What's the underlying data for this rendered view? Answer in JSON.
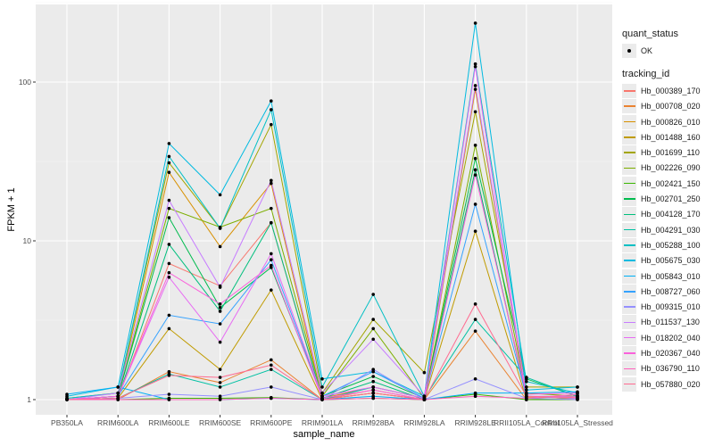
{
  "chart_data": {
    "type": "line",
    "xlabel": "sample_name",
    "ylabel": "FPKM + 1",
    "yscale": "log10",
    "ylim": [
      0.8,
      310
    ],
    "yticks": [
      1,
      10,
      100
    ],
    "grid": true,
    "legend_position": "right",
    "categories": [
      "PB350LA",
      "RRIM600LA",
      "RRIM600LE",
      "RRIM600SE",
      "RRIM600PE",
      "RRIM901LA",
      "RRIM928BA",
      "RRIM928LA",
      "RRIM928LE",
      "RRII105LA_Control",
      "RRII105LA_Stressed"
    ],
    "point_legend": {
      "title": "quant_status",
      "entries": [
        "OK"
      ]
    },
    "color_legend_title": "tracking_id",
    "series": [
      {
        "name": "Hb_000389_170",
        "color": "#F8766D",
        "values": [
          1.0,
          1.02,
          7.2,
          5.2,
          13,
          1.0,
          1.15,
          1.0,
          28,
          1.02,
          1.05
        ]
      },
      {
        "name": "Hb_000708_020",
        "color": "#EA8331",
        "values": [
          1.0,
          1.0,
          1.5,
          1.28,
          1.78,
          1.0,
          1.1,
          1.0,
          2.7,
          1.0,
          1.02
        ]
      },
      {
        "name": "Hb_000826_010",
        "color": "#D89000",
        "values": [
          1.0,
          1.05,
          27,
          9.2,
          23,
          1.02,
          1.2,
          1.02,
          90,
          1.03,
          1.05
        ]
      },
      {
        "name": "Hb_001488_160",
        "color": "#C09B00",
        "values": [
          1.0,
          1.02,
          2.8,
          1.55,
          4.9,
          1.0,
          1.1,
          1.0,
          11.5,
          1.0,
          1.02
        ]
      },
      {
        "name": "Hb_001699_110",
        "color": "#A3A500",
        "values": [
          1.02,
          1.1,
          31,
          12,
          54,
          1.1,
          3.2,
          1.48,
          65,
          1.2,
          1.2
        ]
      },
      {
        "name": "Hb_002226_090",
        "color": "#7CAE00",
        "values": [
          1.0,
          1.05,
          16,
          12.2,
          16,
          1.05,
          2.8,
          1.02,
          40,
          1.1,
          1.05
        ]
      },
      {
        "name": "Hb_002421_150",
        "color": "#39B600",
        "values": [
          1.0,
          1.0,
          1.02,
          1.02,
          1.03,
          1.0,
          1.02,
          1.0,
          1.08,
          1.0,
          1.0
        ]
      },
      {
        "name": "Hb_002701_250",
        "color": "#00BB4E",
        "values": [
          1.0,
          1.05,
          14,
          3.8,
          6.8,
          1.05,
          1.4,
          1.02,
          33,
          1.35,
          1.05
        ]
      },
      {
        "name": "Hb_004128_170",
        "color": "#00BF7D",
        "values": [
          1.0,
          1.02,
          9.5,
          3.6,
          13,
          1.02,
          1.3,
          1.0,
          28,
          1.05,
          1.02
        ]
      },
      {
        "name": "Hb_004291_030",
        "color": "#00C1A3",
        "values": [
          1.0,
          1.02,
          1.45,
          1.2,
          1.55,
          1.0,
          1.2,
          1.02,
          3.2,
          1.38,
          1.05
        ]
      },
      {
        "name": "Hb_005288_100",
        "color": "#00BFC4",
        "values": [
          1.02,
          1.1,
          34,
          12,
          67,
          1.2,
          4.6,
          1.05,
          130,
          1.3,
          1.1
        ]
      },
      {
        "name": "Hb_005675_030",
        "color": "#00BAE0",
        "values": [
          1.05,
          1.2,
          41,
          19.5,
          76,
          1.35,
          1.5,
          1.05,
          235,
          1.15,
          1.2
        ]
      },
      {
        "name": "Hb_005843_010",
        "color": "#00B0F6",
        "values": [
          1.08,
          1.2,
          1.0,
          1.0,
          1.02,
          1.0,
          1.05,
          1.0,
          1.1,
          1.1,
          1.12
        ]
      },
      {
        "name": "Hb_008727_060",
        "color": "#35A2FF",
        "values": [
          1.0,
          1.05,
          3.4,
          3.0,
          7.6,
          1.05,
          1.5,
          1.02,
          17,
          1.05,
          1.02
        ]
      },
      {
        "name": "Hb_009315_010",
        "color": "#9590FF",
        "values": [
          1.0,
          1.02,
          1.08,
          1.05,
          1.2,
          1.0,
          1.55,
          1.0,
          1.35,
          1.02,
          1.0
        ]
      },
      {
        "name": "Hb_011537_130",
        "color": "#C77CFF",
        "values": [
          1.0,
          1.1,
          18,
          5.1,
          24,
          1.1,
          2.4,
          1.05,
          95,
          1.05,
          1.05
        ]
      },
      {
        "name": "Hb_018202_040",
        "color": "#E76BF3",
        "values": [
          1.0,
          1.05,
          5.9,
          2.3,
          8.3,
          1.05,
          1.2,
          1.02,
          125,
          1.05,
          1.02
        ]
      },
      {
        "name": "Hb_020367_040",
        "color": "#FA62DB",
        "values": [
          1.0,
          1.05,
          6.3,
          4.0,
          7.0,
          1.02,
          1.15,
          1.0,
          26,
          1.08,
          1.1
        ]
      },
      {
        "name": "Hb_036790_110",
        "color": "#FF62BC",
        "values": [
          1.0,
          1.0,
          1.0,
          1.0,
          1.02,
          1.0,
          1.02,
          1.0,
          1.05,
          1.02,
          1.08
        ]
      },
      {
        "name": "Hb_057880_020",
        "color": "#FF6C91",
        "values": [
          1.0,
          1.02,
          1.42,
          1.38,
          1.65,
          1.0,
          1.1,
          1.0,
          4.0,
          1.05,
          1.03
        ]
      }
    ]
  }
}
